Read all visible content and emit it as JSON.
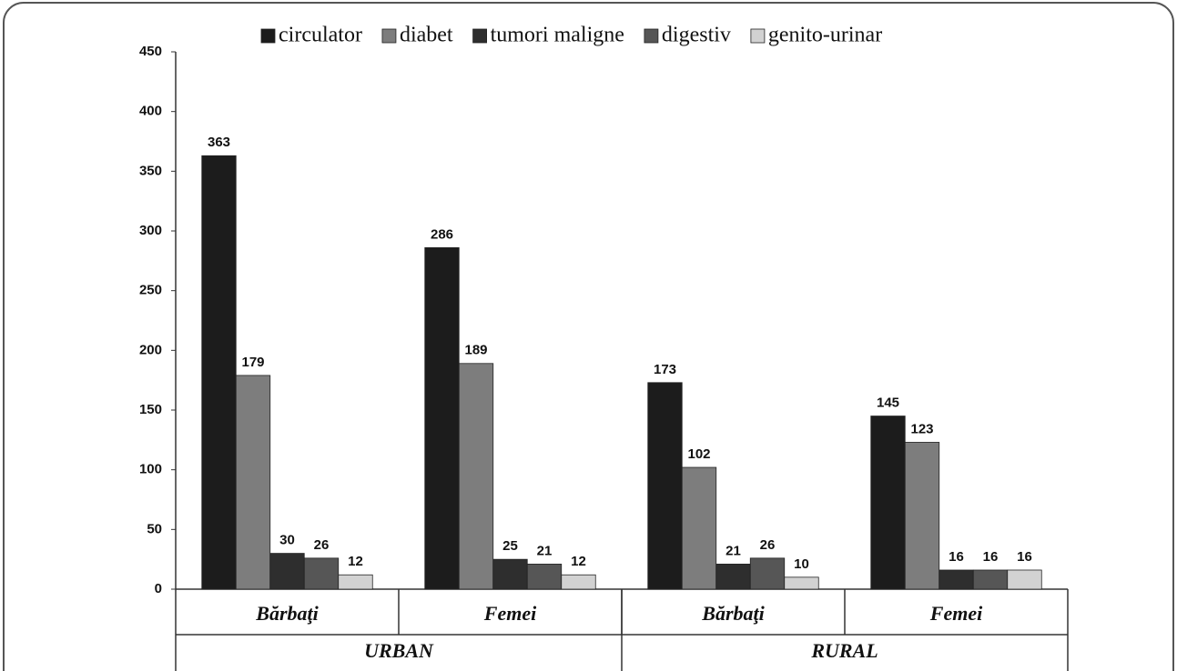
{
  "chart_data": {
    "type": "bar",
    "categories": [
      "Bărbaţi",
      "Femei",
      "Bărbaţi",
      "Femei"
    ],
    "groups": [
      "URBAN",
      "RURAL"
    ],
    "series": [
      {
        "name": "circulator",
        "color": "#1c1c1c",
        "values": [
          363,
          286,
          173,
          145
        ]
      },
      {
        "name": "diabet",
        "color": "#7d7d7d",
        "values": [
          179,
          189,
          102,
          123
        ]
      },
      {
        "name": "tumori maligne",
        "color": "#2e2e2e",
        "values": [
          30,
          25,
          21,
          16
        ]
      },
      {
        "name": "digestiv",
        "color": "#565656",
        "values": [
          26,
          21,
          26,
          16
        ]
      },
      {
        "name": "genito-urinar",
        "color": "#d2d2d2",
        "values": [
          12,
          12,
          10,
          16
        ]
      }
    ],
    "ylim": [
      0,
      450
    ],
    "yticks": [
      0,
      50,
      100,
      150,
      200,
      250,
      300,
      350,
      400,
      450
    ],
    "legend": "top",
    "grid": false
  }
}
